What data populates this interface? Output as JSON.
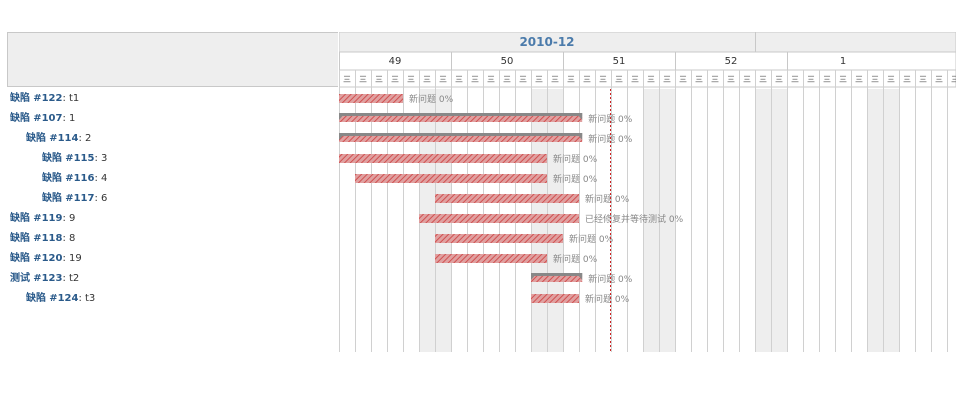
{
  "month_label": "2010-12",
  "weeks": [
    {
      "label": "49",
      "start_day": 0
    },
    {
      "label": "50",
      "start_day": 7
    },
    {
      "label": "51",
      "start_day": 14
    },
    {
      "label": "52",
      "start_day": 21
    },
    {
      "label": "1",
      "start_day": 28
    }
  ],
  "day_glyph": "三",
  "issues": [
    {
      "tracker": "缺陷",
      "id": "#122",
      "subject": "t1",
      "indent": 0,
      "type": "task",
      "start": 0,
      "end": 4,
      "label": "新问题 0%"
    },
    {
      "tracker": "缺陷",
      "id": "#107",
      "subject": "1",
      "indent": 0,
      "type": "parent",
      "start": 0,
      "end": 15.2,
      "label": "新问题 0%"
    },
    {
      "tracker": "缺陷",
      "id": "#114",
      "subject": "2",
      "indent": 1,
      "type": "parent",
      "start": 0,
      "end": 15.2,
      "label": "新问题 0%"
    },
    {
      "tracker": "缺陷",
      "id": "#115",
      "subject": "3",
      "indent": 2,
      "type": "task",
      "start": 0,
      "end": 13,
      "label": "新问题 0%"
    },
    {
      "tracker": "缺陷",
      "id": "#116",
      "subject": "4",
      "indent": 2,
      "type": "task",
      "start": 1,
      "end": 13,
      "label": "新问题 0%"
    },
    {
      "tracker": "缺陷",
      "id": "#117",
      "subject": "6",
      "indent": 2,
      "type": "task",
      "start": 6,
      "end": 15,
      "label": "新问题 0%"
    },
    {
      "tracker": "缺陷",
      "id": "#119",
      "subject": "9",
      "indent": 0,
      "type": "task",
      "start": 5,
      "end": 15,
      "label": "已经修复并等待测试 0%"
    },
    {
      "tracker": "缺陷",
      "id": "#118",
      "subject": "8",
      "indent": 0,
      "type": "task",
      "start": 6,
      "end": 14,
      "label": "新问题 0%"
    },
    {
      "tracker": "缺陷",
      "id": "#120",
      "subject": "19",
      "indent": 0,
      "type": "task",
      "start": 6,
      "end": 13,
      "label": "新问题 0%"
    },
    {
      "tracker": "测试",
      "id": "#123",
      "subject": "t2",
      "indent": 0,
      "type": "parent",
      "start": 12,
      "end": 15.2,
      "label": "新问题 0%"
    },
    {
      "tracker": "缺陷",
      "id": "#124",
      "subject": "t3",
      "indent": 1,
      "type": "task",
      "start": 12,
      "end": 15,
      "label": "新问题 0%"
    }
  ],
  "today_day": 17,
  "colors": {
    "header_bg": "#eeeeee",
    "month_text": "#4b7bab",
    "grid": "#d0d0d0",
    "weekend": "#eeeeee",
    "bar_red": "#e0a0a0",
    "bar_stripe": "#d05050",
    "parent_gray": "#888888",
    "today_line": "#cc2222"
  }
}
